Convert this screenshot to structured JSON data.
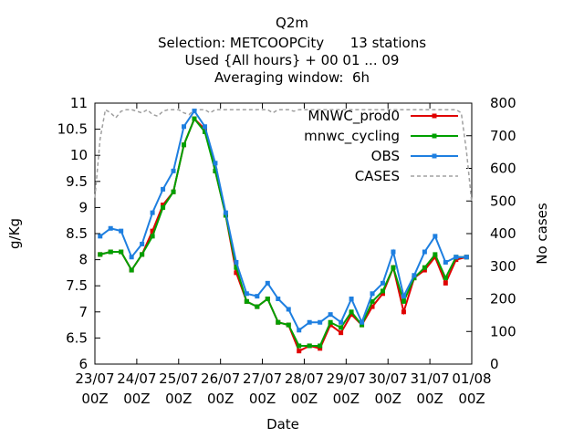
{
  "chart_data": {
    "type": "line",
    "title_lines": [
      "Q2m",
      "Selection: METCOOPCity      13 stations",
      "Used {All hours} + 00 01 ... 09",
      "Averaging window:  6h"
    ],
    "xlabel": "Date",
    "ylabel": "g/Kg",
    "y2label": "No cases",
    "x_ticks": [
      {
        "line1": "23/07",
        "line2": "00Z"
      },
      {
        "line1": "24/07",
        "line2": "00Z"
      },
      {
        "line1": "25/07",
        "line2": "00Z"
      },
      {
        "line1": "26/07",
        "line2": "00Z"
      },
      {
        "line1": "27/07",
        "line2": "00Z"
      },
      {
        "line1": "28/07",
        "line2": "00Z"
      },
      {
        "line1": "29/07",
        "line2": "00Z"
      },
      {
        "line1": "30/07",
        "line2": "00Z"
      },
      {
        "line1": "31/07",
        "line2": "00Z"
      },
      {
        "line1": "01/08",
        "line2": "00Z"
      }
    ],
    "xlim": [
      "2023-07-23T00:00",
      "2023-08-01T00:00"
    ],
    "ylim": [
      6,
      11
    ],
    "yticks": [
      "6",
      "6.5",
      "7",
      "7.5",
      "8",
      "8.5",
      "9",
      "9.5",
      "10",
      "10.5",
      "11"
    ],
    "y2lim": [
      0,
      800
    ],
    "y2ticks": [
      "0",
      "100",
      "200",
      "300",
      "400",
      "500",
      "600",
      "700",
      "800"
    ],
    "grid": false,
    "legend_position": "top-right",
    "x": [
      "23/07 03Z",
      "23/07 09Z",
      "23/07 15Z",
      "23/07 21Z",
      "24/07 03Z",
      "24/07 09Z",
      "24/07 15Z",
      "24/07 21Z",
      "25/07 03Z",
      "25/07 09Z",
      "25/07 15Z",
      "25/07 21Z",
      "26/07 03Z",
      "26/07 09Z",
      "26/07 15Z",
      "26/07 21Z",
      "27/07 03Z",
      "27/07 09Z",
      "27/07 15Z",
      "27/07 21Z",
      "28/07 03Z",
      "28/07 09Z",
      "28/07 15Z",
      "28/07 21Z",
      "29/07 03Z",
      "29/07 09Z",
      "29/07 15Z",
      "29/07 21Z",
      "30/07 03Z",
      "30/07 09Z",
      "30/07 15Z",
      "30/07 21Z",
      "31/07 03Z",
      "31/07 09Z",
      "31/07 15Z",
      "31/07 21Z"
    ],
    "series": [
      {
        "name": "MNWC_prod0",
        "color": "#e00000",
        "axis": "left",
        "values": [
          8.1,
          8.15,
          8.15,
          7.8,
          8.1,
          8.55,
          9.05,
          9.3,
          10.2,
          10.7,
          10.5,
          9.7,
          8.85,
          7.75,
          7.2,
          7.1,
          7.25,
          6.8,
          6.75,
          6.25,
          6.35,
          6.3,
          6.75,
          6.6,
          6.95,
          6.75,
          7.1,
          7.35,
          7.85,
          7.0,
          7.65,
          7.8,
          8.05,
          7.55,
          8.0,
          8.05
        ]
      },
      {
        "name": "mnwc_cycling",
        "color": "#00a000",
        "axis": "left",
        "values": [
          8.1,
          8.15,
          8.15,
          7.8,
          8.1,
          8.45,
          9.0,
          9.3,
          10.2,
          10.7,
          10.45,
          9.7,
          8.85,
          7.85,
          7.2,
          7.1,
          7.25,
          6.8,
          6.75,
          6.35,
          6.35,
          6.35,
          6.8,
          6.7,
          7.0,
          6.75,
          7.2,
          7.4,
          7.85,
          7.2,
          7.65,
          7.85,
          8.1,
          7.65,
          8.05,
          8.05
        ]
      },
      {
        "name": "OBS",
        "color": "#1e7fe0",
        "axis": "left",
        "values": [
          8.45,
          8.6,
          8.55,
          8.05,
          8.3,
          8.9,
          9.35,
          9.7,
          10.55,
          10.85,
          10.55,
          9.85,
          8.9,
          7.95,
          7.35,
          7.3,
          7.55,
          7.25,
          7.05,
          6.65,
          6.8,
          6.8,
          6.95,
          6.8,
          7.25,
          6.8,
          7.35,
          7.55,
          8.15,
          7.3,
          7.7,
          8.15,
          8.45,
          7.95,
          8.05,
          8.05
        ]
      },
      {
        "name": "CASES",
        "color": "#a0a0a0",
        "axis": "right",
        "dashed": true,
        "x": [
          "23/07 00Z",
          "23/07 03Z",
          "23/07 06Z",
          "23/07 09Z",
          "23/07 12Z",
          "23/07 15Z",
          "23/07 18Z",
          "23/07 21Z",
          "24/07 00Z",
          "24/07 03Z",
          "24/07 06Z",
          "24/07 09Z",
          "24/07 12Z",
          "24/07 15Z",
          "24/07 18Z",
          "24/07 21Z",
          "25/07 00Z",
          "25/07 03Z",
          "25/07 06Z",
          "25/07 09Z",
          "25/07 12Z",
          "25/07 15Z",
          "25/07 18Z",
          "25/07 21Z",
          "26/07 00Z",
          "26/07 03Z",
          "26/07 06Z",
          "26/07 09Z",
          "26/07 12Z",
          "26/07 15Z",
          "26/07 18Z",
          "26/07 21Z",
          "27/07 00Z",
          "27/07 03Z",
          "27/07 06Z",
          "27/07 09Z",
          "27/07 12Z",
          "27/07 15Z",
          "27/07 18Z",
          "27/07 21Z",
          "28/07 00Z",
          "28/07 03Z",
          "28/07 06Z",
          "28/07 09Z",
          "28/07 12Z",
          "28/07 15Z",
          "28/07 18Z",
          "28/07 21Z",
          "29/07 00Z",
          "29/07 03Z",
          "29/07 06Z",
          "29/07 09Z",
          "29/07 12Z",
          "29/07 15Z",
          "29/07 18Z",
          "29/07 21Z",
          "30/07 00Z",
          "30/07 03Z",
          "30/07 06Z",
          "30/07 09Z",
          "30/07 12Z",
          "30/07 15Z",
          "30/07 18Z",
          "30/07 21Z",
          "31/07 00Z",
          "31/07 03Z",
          "31/07 06Z",
          "31/07 09Z",
          "31/07 12Z",
          "31/07 15Z",
          "31/07 18Z",
          "31/07 21Z",
          "01/08 00Z"
        ],
        "values": [
          510,
          690,
          780,
          770,
          755,
          775,
          780,
          780,
          775,
          770,
          780,
          765,
          760,
          775,
          780,
          780,
          780,
          770,
          765,
          780,
          780,
          780,
          770,
          780,
          780,
          780,
          780,
          780,
          780,
          780,
          780,
          780,
          780,
          780,
          770,
          780,
          780,
          780,
          775,
          780,
          780,
          780,
          780,
          780,
          780,
          780,
          780,
          780,
          780,
          780,
          780,
          780,
          780,
          780,
          780,
          780,
          780,
          780,
          780,
          780,
          780,
          780,
          780,
          780,
          780,
          780,
          780,
          780,
          780,
          780,
          770,
          650,
          495
        ]
      }
    ]
  }
}
